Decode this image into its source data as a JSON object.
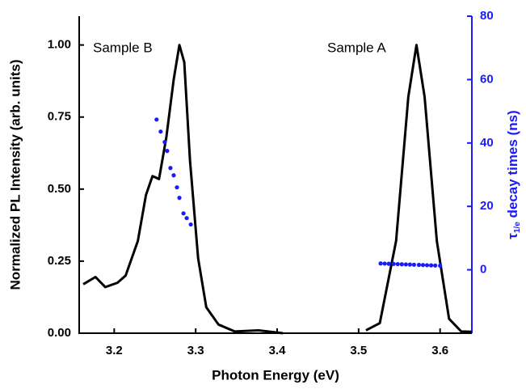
{
  "chart_data": {
    "type": "line",
    "xlabel": "Photon Energy (eV)",
    "ylabel": "Normalized PL Intensity (arb. units)",
    "y2label": [
      "τ",
      "1/e",
      " decay times (ns)"
    ],
    "annotations": [
      "Sample B",
      "Sample A"
    ],
    "xlim": [
      3.157,
      3.639
    ],
    "xticks": [
      3.2,
      3.3,
      3.4,
      3.5,
      3.6
    ],
    "ylim": [
      0,
      1.1
    ],
    "yticks": [
      {
        "value": 0,
        "label": "0.00"
      },
      {
        "value": 0.25,
        "label": "0.25"
      },
      {
        "value": 0.5,
        "label": "0.50"
      },
      {
        "value": 0.75,
        "label": "0.75"
      },
      {
        "value": 1,
        "label": "1.00"
      }
    ],
    "y2lim": [
      -20,
      80
    ],
    "y2ticks": [
      0,
      20,
      40,
      60,
      80
    ],
    "y2color": "#1a1aff",
    "series": [
      {
        "type": "line",
        "color": "#000000",
        "x": [
          3.162,
          3.177,
          3.189,
          3.204,
          3.214,
          3.229,
          3.239,
          3.247,
          3.255,
          3.264,
          3.273,
          3.28,
          3.286,
          3.293,
          3.303,
          3.313,
          3.328,
          3.348,
          3.377,
          3.407
        ],
        "values": [
          0.17,
          0.195,
          0.16,
          0.175,
          0.2,
          0.32,
          0.48,
          0.545,
          0.535,
          0.68,
          0.88,
          1.0,
          0.94,
          0.6,
          0.26,
          0.09,
          0.03,
          0.006,
          0.01,
          0
        ]
      },
      {
        "type": "line",
        "color": "#000000",
        "x": [
          3.509,
          3.526,
          3.546,
          3.561,
          3.571,
          3.581,
          3.596,
          3.611,
          3.626,
          3.639
        ],
        "values": [
          0.01,
          0.035,
          0.32,
          0.82,
          1.0,
          0.82,
          0.32,
          0.05,
          0.006,
          0.005
        ]
      },
      {
        "type": "scatter",
        "axis": "y2",
        "color": "#1a1aff",
        "x": [
          3.252,
          3.257,
          3.262,
          3.265,
          3.269,
          3.273,
          3.277,
          3.28,
          3.285,
          3.289,
          3.294
        ],
        "values": [
          47.4,
          43.6,
          40.3,
          37.5,
          32.1,
          29.8,
          26,
          22.7,
          17.8,
          16.3,
          14.3
        ]
      },
      {
        "type": "scatter",
        "axis": "y2",
        "color": "#1a1aff",
        "x": [
          3.527,
          3.532,
          3.537,
          3.543,
          3.548,
          3.553,
          3.558,
          3.563,
          3.568,
          3.574,
          3.579,
          3.584,
          3.589,
          3.594,
          3.6
        ],
        "values": [
          2.0,
          1.95,
          1.9,
          1.85,
          1.8,
          1.75,
          1.7,
          1.65,
          1.6,
          1.55,
          1.5,
          1.45,
          1.4,
          1.35,
          1.3
        ]
      }
    ]
  }
}
